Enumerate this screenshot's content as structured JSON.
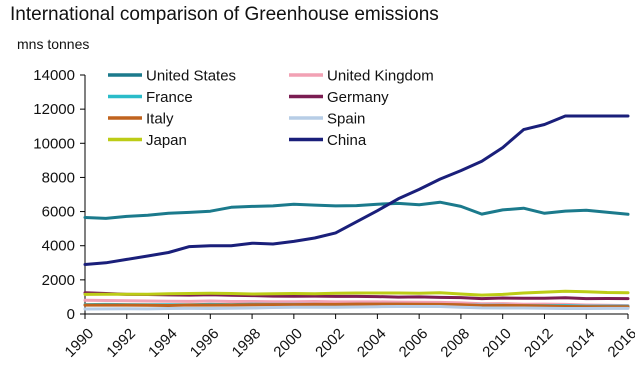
{
  "chart_data": {
    "type": "line",
    "title": "International comparison of Greenhouse emissions",
    "ylabel": "mns tonnes",
    "xlabel": "",
    "ylim": [
      0,
      14000
    ],
    "yticks": [
      "0",
      "2000",
      "4000",
      "6000",
      "8000",
      "10000",
      "12000",
      "14000"
    ],
    "xticks": [
      "1990",
      "1992",
      "1994",
      "1996",
      "1998",
      "2000",
      "2002",
      "2004",
      "2006",
      "2008",
      "2010",
      "2012",
      "2014",
      "2016"
    ],
    "x": [
      1990,
      1991,
      1992,
      1993,
      1994,
      1995,
      1996,
      1997,
      1998,
      1999,
      2000,
      2001,
      2002,
      2003,
      2004,
      2005,
      2006,
      2007,
      2008,
      2009,
      2010,
      2011,
      2012,
      2013,
      2014,
      2015,
      2016
    ],
    "grid": false,
    "legend_position": "top-left",
    "series": [
      {
        "name": "United States",
        "color": "#1b7a8c",
        "values": [
          5650,
          5600,
          5720,
          5780,
          5900,
          5950,
          6020,
          6250,
          6300,
          6330,
          6430,
          6380,
          6330,
          6350,
          6430,
          6480,
          6400,
          6550,
          6300,
          5850,
          6100,
          6200,
          5900,
          6030,
          6080,
          5960,
          5840
        ]
      },
      {
        "name": "United Kingdom",
        "color": "#f2a1b4",
        "values": [
          800,
          790,
          780,
          760,
          750,
          740,
          760,
          730,
          730,
          720,
          720,
          730,
          710,
          710,
          710,
          700,
          690,
          680,
          650,
          600,
          610,
          570,
          580,
          560,
          530,
          510,
          490
        ]
      },
      {
        "name": "France",
        "color": "#2bbcc9",
        "values": [
          550,
          560,
          550,
          540,
          540,
          540,
          560,
          550,
          570,
          560,
          560,
          560,
          550,
          560,
          560,
          560,
          550,
          540,
          530,
          510,
          510,
          490,
          490,
          490,
          460,
          460,
          460
        ]
      },
      {
        "name": "Germany",
        "color": "#7b1d52",
        "values": [
          1250,
          1200,
          1150,
          1140,
          1120,
          1110,
          1130,
          1100,
          1080,
          1050,
          1040,
          1050,
          1030,
          1030,
          1020,
          990,
          1000,
          970,
          960,
          900,
          940,
          920,
          920,
          950,
          900,
          910,
          900
        ]
      },
      {
        "name": "Italy",
        "color": "#c0631e",
        "values": [
          520,
          520,
          520,
          510,
          500,
          530,
          520,
          530,
          540,
          550,
          550,
          560,
          560,
          580,
          580,
          580,
          570,
          560,
          540,
          490,
          500,
          490,
          470,
          440,
          420,
          430,
          430
        ]
      },
      {
        "name": "Spain",
        "color": "#b7cde6",
        "values": [
          290,
          300,
          310,
          300,
          320,
          330,
          320,
          340,
          350,
          380,
          390,
          390,
          400,
          410,
          430,
          440,
          440,
          440,
          400,
          360,
          350,
          350,
          340,
          320,
          320,
          330,
          330
        ]
      },
      {
        "name": "Japan",
        "color": "#bccc16",
        "values": [
          1150,
          1160,
          1160,
          1160,
          1190,
          1200,
          1210,
          1200,
          1170,
          1190,
          1200,
          1190,
          1220,
          1230,
          1230,
          1230,
          1220,
          1240,
          1170,
          1110,
          1150,
          1230,
          1280,
          1330,
          1300,
          1260,
          1250
        ]
      },
      {
        "name": "China",
        "color": "#1a1f7a",
        "values": [
          2900,
          3000,
          3200,
          3400,
          3600,
          3950,
          4000,
          4000,
          4150,
          4100,
          4250,
          4450,
          4750,
          5400,
          6050,
          6750,
          7300,
          7900,
          8400,
          8950,
          9750,
          10800,
          11100,
          11600,
          11600,
          11600,
          11600
        ]
      }
    ]
  }
}
